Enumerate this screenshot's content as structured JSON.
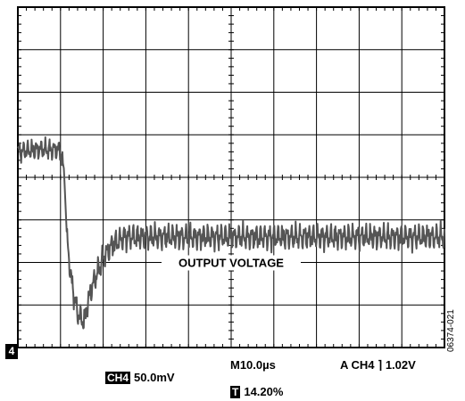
{
  "chart_data": {
    "type": "line",
    "title": "",
    "annotation": "OUTPUT VOLTAGE",
    "grid": true,
    "divisions": {
      "x": 10,
      "y": 8
    },
    "units": {
      "x": "µs",
      "y": "mV"
    },
    "xlim": [
      0,
      100
    ],
    "ylim": [
      -150,
      250
    ],
    "series": [
      {
        "x": [
          0,
          5,
          10,
          10.8,
          11.5,
          12.5,
          14,
          15.5,
          17,
          18,
          20,
          22,
          25,
          30,
          40,
          50,
          60,
          70,
          80,
          90,
          100
        ],
        "y": [
          80,
          83,
          82,
          60,
          -20,
          -70,
          -110,
          -120,
          -85,
          -70,
          -45,
          -30,
          -20,
          -20,
          -20,
          -20,
          -20,
          -20,
          -20,
          -20,
          -20
        ],
        "ripple_mV": 15
      }
    ]
  },
  "readouts": {
    "channel_marker": "4",
    "ch4_label": "CH4",
    "ch4_scale": "50.0mV",
    "timebase": "M10.0µs",
    "trigger": "A  CH4 ⌉ 1.02V",
    "trigger_position_icon": "T",
    "trigger_position": "14.20%",
    "figure_id": "06374-021"
  }
}
